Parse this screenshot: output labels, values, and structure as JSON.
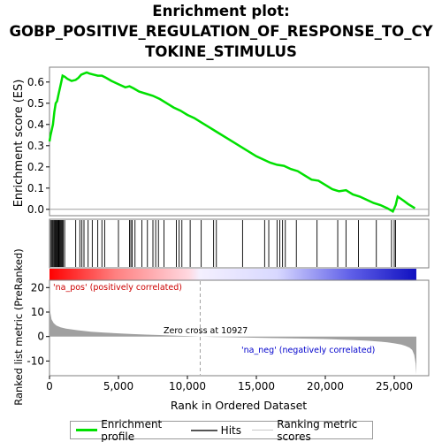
{
  "title_line1": "Enrichment plot:",
  "title_line2": "GOBP_POSITIVE_REGULATION_OF_RESPONSE_TO_CY",
  "title_line3": "TOKINE_STIMULUS",
  "colors": {
    "es_line": "#00e000",
    "hits": "#000000",
    "ranking": "#a0a0a0",
    "pos_label": "#cc0000",
    "neg_label": "#0000cc"
  },
  "chart_data": [
    {
      "type": "line",
      "name": "enrichment",
      "ylabel": "Enrichment score (ES)",
      "ylim": [
        -0.03,
        0.67
      ],
      "yticks": [
        0.0,
        0.1,
        0.2,
        0.3,
        0.4,
        0.5,
        0.6
      ],
      "ytick_labels": [
        "0.0",
        "0.1",
        "0.2",
        "0.3",
        "0.4",
        "0.5",
        "0.6"
      ],
      "xlim": [
        0,
        27500
      ],
      "series": [
        {
          "name": "Enrichment profile",
          "x": [
            0,
            80,
            150,
            250,
            350,
            450,
            550,
            650,
            750,
            850,
            950,
            1100,
            1300,
            1600,
            1900,
            2100,
            2300,
            2500,
            2700,
            2900,
            3200,
            3500,
            3800,
            4100,
            4500,
            5000,
            5500,
            5800,
            6100,
            6500,
            7000,
            7500,
            8000,
            8500,
            9000,
            9500,
            10000,
            10500,
            11000,
            11500,
            12000,
            13000,
            14000,
            15000,
            16000,
            16500,
            17000,
            17500,
            18000,
            18500,
            19000,
            19500,
            20000,
            20500,
            21000,
            21500,
            22000,
            22500,
            23000,
            23500,
            24000,
            24500,
            24900,
            25100,
            25250,
            25700,
            26000,
            26500
          ],
          "y": [
            0.32,
            0.35,
            0.37,
            0.4,
            0.46,
            0.5,
            0.51,
            0.54,
            0.57,
            0.6,
            0.63,
            0.625,
            0.615,
            0.605,
            0.61,
            0.62,
            0.635,
            0.64,
            0.645,
            0.64,
            0.635,
            0.63,
            0.63,
            0.62,
            0.605,
            0.59,
            0.575,
            0.58,
            0.57,
            0.555,
            0.545,
            0.535,
            0.52,
            0.5,
            0.48,
            0.465,
            0.445,
            0.43,
            0.41,
            0.39,
            0.37,
            0.33,
            0.29,
            0.25,
            0.22,
            0.21,
            0.205,
            0.19,
            0.18,
            0.16,
            0.14,
            0.135,
            0.115,
            0.095,
            0.085,
            0.09,
            0.07,
            0.06,
            0.045,
            0.03,
            0.02,
            0.005,
            -0.01,
            0.02,
            0.06,
            0.04,
            0.025,
            0.005
          ]
        }
      ]
    },
    {
      "type": "scatter",
      "name": "hits",
      "hit_positions": [
        80,
        150,
        230,
        300,
        360,
        420,
        480,
        540,
        600,
        650,
        700,
        760,
        820,
        880,
        940,
        1000,
        1100,
        1900,
        2200,
        2350,
        2500,
        2800,
        3100,
        3500,
        3800,
        4000,
        5000,
        5800,
        5900,
        6000,
        6200,
        6700,
        7100,
        7500,
        7700,
        7900,
        8300,
        9200,
        9400,
        9600,
        10200,
        11000,
        11900,
        12100,
        14000,
        15600,
        15900,
        16500,
        16700,
        16900,
        17100,
        17900,
        19400,
        20900,
        21500,
        22400,
        23700,
        24800,
        25000,
        25100
      ]
    },
    {
      "type": "area",
      "name": "ranking",
      "ylabel": "Ranked list metric (PreRanked)",
      "xlabel": "Rank in Ordered Dataset",
      "ylim": [
        -16,
        23
      ],
      "yticks": [
        -10,
        0,
        10,
        20
      ],
      "ytick_labels": [
        "-10",
        "0",
        "10",
        "20"
      ],
      "xticks": [
        0,
        5000,
        10000,
        15000,
        20000,
        25000
      ],
      "xtick_labels": [
        "0",
        "5,000",
        "10,000",
        "15,000",
        "20,000",
        "25,000"
      ],
      "x": [
        0,
        50,
        150,
        300,
        500,
        800,
        1200,
        2000,
        3000,
        4000,
        5000,
        6000,
        7000,
        8000,
        9000,
        10000,
        10927,
        12000,
        14000,
        16000,
        18000,
        20000,
        22000,
        23000,
        24000,
        24500,
        25000,
        25500,
        25800,
        26100,
        26300,
        26450,
        26550,
        26600
      ],
      "y": [
        22,
        10,
        7,
        5.5,
        4.5,
        3.8,
        3.2,
        2.6,
        2.0,
        1.6,
        1.3,
        1.0,
        0.8,
        0.6,
        0.4,
        0.2,
        0,
        -0.2,
        -0.4,
        -0.6,
        -0.8,
        -1.0,
        -1.4,
        -1.7,
        -2.1,
        -2.4,
        -2.8,
        -3.3,
        -3.8,
        -4.5,
        -5.5,
        -7.5,
        -11.0,
        -15.5
      ],
      "zero_cross_label": "Zero cross at 10927",
      "zero_cross": 10927,
      "pos_label": "'na_pos' (positively correlated)",
      "neg_label": "'na_neg' (negatively correlated)"
    }
  ],
  "legend": {
    "items": [
      {
        "label": "Enrichment profile"
      },
      {
        "label": "Hits"
      },
      {
        "label": "Ranking metric scores"
      }
    ]
  }
}
